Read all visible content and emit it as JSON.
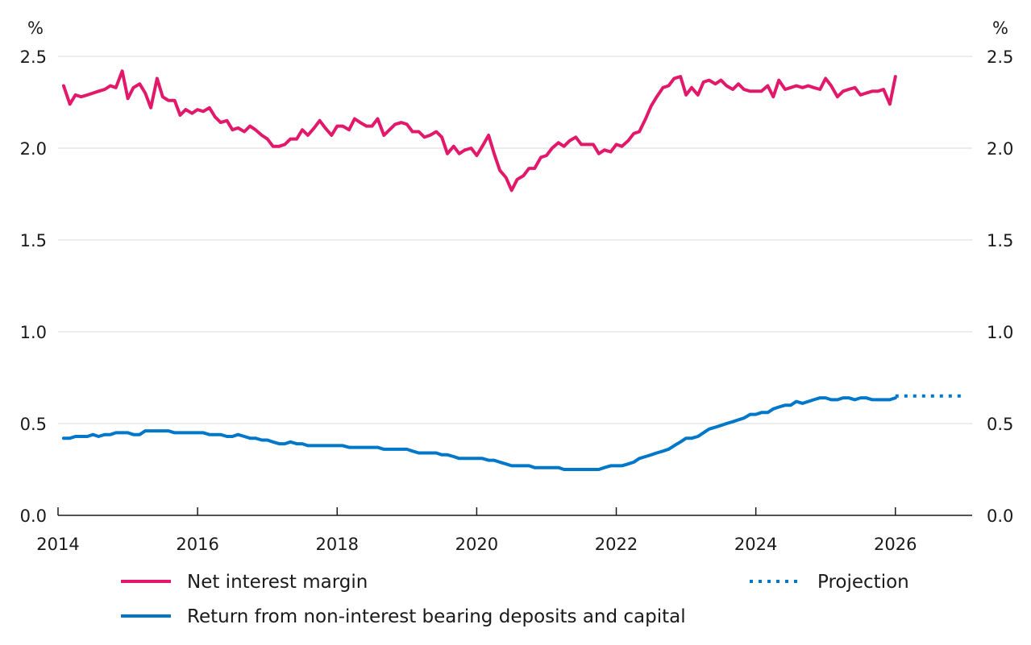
{
  "chart_data": {
    "type": "line",
    "y_unit_left": "%",
    "y_unit_right": "%",
    "ylim": [
      0,
      2.5
    ],
    "y_ticks": [
      0,
      0.5,
      1,
      1.5,
      2,
      2.5
    ],
    "y_tick_labels": [
      "0.0",
      "0.5",
      "1.0",
      "1.5",
      "2.0",
      "2.5"
    ],
    "xlim": [
      2014,
      2027.1
    ],
    "x_ticks": [
      2014,
      2016,
      2018,
      2020,
      2022,
      2024,
      2026
    ],
    "x_tick_labels": [
      "2014",
      "2016",
      "2018",
      "2020",
      "2022",
      "2024",
      "2026"
    ],
    "grid": "horizontal",
    "legend_placement": "bottom",
    "series": [
      {
        "name": "Net interest margin",
        "color": "#e2196b",
        "style": "solid",
        "points": [
          [
            2014.08,
            2.34
          ],
          [
            2014.17,
            2.24
          ],
          [
            2014.25,
            2.29
          ],
          [
            2014.33,
            2.28
          ],
          [
            2014.42,
            2.29
          ],
          [
            2014.5,
            2.3
          ],
          [
            2014.58,
            2.31
          ],
          [
            2014.67,
            2.32
          ],
          [
            2014.75,
            2.34
          ],
          [
            2014.83,
            2.33
          ],
          [
            2014.92,
            2.42
          ],
          [
            2015.0,
            2.27
          ],
          [
            2015.08,
            2.33
          ],
          [
            2015.17,
            2.35
          ],
          [
            2015.25,
            2.3
          ],
          [
            2015.33,
            2.22
          ],
          [
            2015.42,
            2.38
          ],
          [
            2015.5,
            2.28
          ],
          [
            2015.58,
            2.26
          ],
          [
            2015.67,
            2.26
          ],
          [
            2015.75,
            2.18
          ],
          [
            2015.83,
            2.21
          ],
          [
            2015.92,
            2.19
          ],
          [
            2016.0,
            2.21
          ],
          [
            2016.08,
            2.2
          ],
          [
            2016.17,
            2.22
          ],
          [
            2016.25,
            2.17
          ],
          [
            2016.33,
            2.14
          ],
          [
            2016.42,
            2.15
          ],
          [
            2016.5,
            2.1
          ],
          [
            2016.58,
            2.11
          ],
          [
            2016.67,
            2.09
          ],
          [
            2016.75,
            2.12
          ],
          [
            2016.83,
            2.1
          ],
          [
            2016.92,
            2.07
          ],
          [
            2017.0,
            2.05
          ],
          [
            2017.08,
            2.01
          ],
          [
            2017.17,
            2.01
          ],
          [
            2017.25,
            2.02
          ],
          [
            2017.33,
            2.05
          ],
          [
            2017.42,
            2.05
          ],
          [
            2017.5,
            2.1
          ],
          [
            2017.58,
            2.07
          ],
          [
            2017.67,
            2.11
          ],
          [
            2017.75,
            2.15
          ],
          [
            2017.83,
            2.11
          ],
          [
            2017.92,
            2.07
          ],
          [
            2018.0,
            2.12
          ],
          [
            2018.08,
            2.12
          ],
          [
            2018.17,
            2.1
          ],
          [
            2018.25,
            2.16
          ],
          [
            2018.33,
            2.14
          ],
          [
            2018.42,
            2.12
          ],
          [
            2018.5,
            2.12
          ],
          [
            2018.58,
            2.16
          ],
          [
            2018.67,
            2.07
          ],
          [
            2018.75,
            2.1
          ],
          [
            2018.83,
            2.13
          ],
          [
            2018.92,
            2.14
          ],
          [
            2019.0,
            2.13
          ],
          [
            2019.08,
            2.09
          ],
          [
            2019.17,
            2.09
          ],
          [
            2019.25,
            2.06
          ],
          [
            2019.33,
            2.07
          ],
          [
            2019.42,
            2.09
          ],
          [
            2019.5,
            2.06
          ],
          [
            2019.58,
            1.97
          ],
          [
            2019.67,
            2.01
          ],
          [
            2019.75,
            1.97
          ],
          [
            2019.83,
            1.99
          ],
          [
            2019.92,
            2.0
          ],
          [
            2020.0,
            1.96
          ],
          [
            2020.08,
            2.01
          ],
          [
            2020.17,
            2.07
          ],
          [
            2020.25,
            1.97
          ],
          [
            2020.33,
            1.88
          ],
          [
            2020.42,
            1.84
          ],
          [
            2020.5,
            1.77
          ],
          [
            2020.58,
            1.83
          ],
          [
            2020.67,
            1.85
          ],
          [
            2020.75,
            1.89
          ],
          [
            2020.83,
            1.89
          ],
          [
            2020.92,
            1.95
          ],
          [
            2021.0,
            1.96
          ],
          [
            2021.08,
            2.0
          ],
          [
            2021.17,
            2.03
          ],
          [
            2021.25,
            2.01
          ],
          [
            2021.33,
            2.04
          ],
          [
            2021.42,
            2.06
          ],
          [
            2021.5,
            2.02
          ],
          [
            2021.58,
            2.02
          ],
          [
            2021.67,
            2.02
          ],
          [
            2021.75,
            1.97
          ],
          [
            2021.83,
            1.99
          ],
          [
            2021.92,
            1.98
          ],
          [
            2022.0,
            2.02
          ],
          [
            2022.08,
            2.01
          ],
          [
            2022.17,
            2.04
          ],
          [
            2022.25,
            2.08
          ],
          [
            2022.33,
            2.09
          ],
          [
            2022.42,
            2.16
          ],
          [
            2022.5,
            2.23
          ],
          [
            2022.58,
            2.28
          ],
          [
            2022.67,
            2.33
          ],
          [
            2022.75,
            2.34
          ],
          [
            2022.83,
            2.38
          ],
          [
            2022.92,
            2.39
          ],
          [
            2023.0,
            2.29
          ],
          [
            2023.08,
            2.33
          ],
          [
            2023.17,
            2.29
          ],
          [
            2023.25,
            2.36
          ],
          [
            2023.33,
            2.37
          ],
          [
            2023.42,
            2.35
          ],
          [
            2023.5,
            2.37
          ],
          [
            2023.58,
            2.34
          ],
          [
            2023.67,
            2.32
          ],
          [
            2023.75,
            2.35
          ],
          [
            2023.83,
            2.32
          ],
          [
            2023.92,
            2.31
          ],
          [
            2024.0,
            2.31
          ],
          [
            2024.08,
            2.31
          ],
          [
            2024.17,
            2.34
          ],
          [
            2024.25,
            2.28
          ],
          [
            2024.33,
            2.37
          ],
          [
            2024.42,
            2.32
          ],
          [
            2024.5,
            2.33
          ],
          [
            2024.58,
            2.34
          ],
          [
            2024.67,
            2.33
          ],
          [
            2024.75,
            2.34
          ],
          [
            2024.83,
            2.33
          ],
          [
            2024.92,
            2.32
          ],
          [
            2025.0,
            2.38
          ],
          [
            2025.08,
            2.34
          ],
          [
            2025.17,
            2.28
          ],
          [
            2025.25,
            2.31
          ],
          [
            2025.33,
            2.32
          ],
          [
            2025.42,
            2.33
          ],
          [
            2025.5,
            2.29
          ],
          [
            2025.58,
            2.3
          ],
          [
            2025.67,
            2.31
          ],
          [
            2025.75,
            2.31
          ],
          [
            2025.83,
            2.32
          ],
          [
            2025.92,
            2.24
          ],
          [
            2026.0,
            2.39
          ]
        ]
      },
      {
        "name": "Return from non-interest bearing deposits and capital",
        "color": "#0077c8",
        "style": "solid",
        "points": [
          [
            2014.08,
            0.42
          ],
          [
            2014.17,
            0.42
          ],
          [
            2014.25,
            0.43
          ],
          [
            2014.33,
            0.43
          ],
          [
            2014.42,
            0.43
          ],
          [
            2014.5,
            0.44
          ],
          [
            2014.58,
            0.43
          ],
          [
            2014.67,
            0.44
          ],
          [
            2014.75,
            0.44
          ],
          [
            2014.83,
            0.45
          ],
          [
            2014.92,
            0.45
          ],
          [
            2015.0,
            0.45
          ],
          [
            2015.08,
            0.44
          ],
          [
            2015.17,
            0.44
          ],
          [
            2015.25,
            0.46
          ],
          [
            2015.33,
            0.46
          ],
          [
            2015.42,
            0.46
          ],
          [
            2015.5,
            0.46
          ],
          [
            2015.58,
            0.46
          ],
          [
            2015.67,
            0.45
          ],
          [
            2015.75,
            0.45
          ],
          [
            2015.83,
            0.45
          ],
          [
            2015.92,
            0.45
          ],
          [
            2016.0,
            0.45
          ],
          [
            2016.08,
            0.45
          ],
          [
            2016.17,
            0.44
          ],
          [
            2016.25,
            0.44
          ],
          [
            2016.33,
            0.44
          ],
          [
            2016.42,
            0.43
          ],
          [
            2016.5,
            0.43
          ],
          [
            2016.58,
            0.44
          ],
          [
            2016.67,
            0.43
          ],
          [
            2016.75,
            0.42
          ],
          [
            2016.83,
            0.42
          ],
          [
            2016.92,
            0.41
          ],
          [
            2017.0,
            0.41
          ],
          [
            2017.08,
            0.4
          ],
          [
            2017.17,
            0.39
          ],
          [
            2017.25,
            0.39
          ],
          [
            2017.33,
            0.4
          ],
          [
            2017.42,
            0.39
          ],
          [
            2017.5,
            0.39
          ],
          [
            2017.58,
            0.38
          ],
          [
            2017.67,
            0.38
          ],
          [
            2017.75,
            0.38
          ],
          [
            2017.83,
            0.38
          ],
          [
            2017.92,
            0.38
          ],
          [
            2018.0,
            0.38
          ],
          [
            2018.08,
            0.38
          ],
          [
            2018.17,
            0.37
          ],
          [
            2018.25,
            0.37
          ],
          [
            2018.33,
            0.37
          ],
          [
            2018.42,
            0.37
          ],
          [
            2018.5,
            0.37
          ],
          [
            2018.58,
            0.37
          ],
          [
            2018.67,
            0.36
          ],
          [
            2018.75,
            0.36
          ],
          [
            2018.83,
            0.36
          ],
          [
            2018.92,
            0.36
          ],
          [
            2019.0,
            0.36
          ],
          [
            2019.08,
            0.35
          ],
          [
            2019.17,
            0.34
          ],
          [
            2019.25,
            0.34
          ],
          [
            2019.33,
            0.34
          ],
          [
            2019.42,
            0.34
          ],
          [
            2019.5,
            0.33
          ],
          [
            2019.58,
            0.33
          ],
          [
            2019.67,
            0.32
          ],
          [
            2019.75,
            0.31
          ],
          [
            2019.83,
            0.31
          ],
          [
            2019.92,
            0.31
          ],
          [
            2020.0,
            0.31
          ],
          [
            2020.08,
            0.31
          ],
          [
            2020.17,
            0.3
          ],
          [
            2020.25,
            0.3
          ],
          [
            2020.33,
            0.29
          ],
          [
            2020.42,
            0.28
          ],
          [
            2020.5,
            0.27
          ],
          [
            2020.58,
            0.27
          ],
          [
            2020.67,
            0.27
          ],
          [
            2020.75,
            0.27
          ],
          [
            2020.83,
            0.26
          ],
          [
            2020.92,
            0.26
          ],
          [
            2021.0,
            0.26
          ],
          [
            2021.08,
            0.26
          ],
          [
            2021.17,
            0.26
          ],
          [
            2021.25,
            0.25
          ],
          [
            2021.33,
            0.25
          ],
          [
            2021.42,
            0.25
          ],
          [
            2021.5,
            0.25
          ],
          [
            2021.58,
            0.25
          ],
          [
            2021.67,
            0.25
          ],
          [
            2021.75,
            0.25
          ],
          [
            2021.83,
            0.26
          ],
          [
            2021.92,
            0.27
          ],
          [
            2022.0,
            0.27
          ],
          [
            2022.08,
            0.27
          ],
          [
            2022.17,
            0.28
          ],
          [
            2022.25,
            0.29
          ],
          [
            2022.33,
            0.31
          ],
          [
            2022.42,
            0.32
          ],
          [
            2022.5,
            0.33
          ],
          [
            2022.58,
            0.34
          ],
          [
            2022.67,
            0.35
          ],
          [
            2022.75,
            0.36
          ],
          [
            2022.83,
            0.38
          ],
          [
            2022.92,
            0.4
          ],
          [
            2023.0,
            0.42
          ],
          [
            2023.08,
            0.42
          ],
          [
            2023.17,
            0.43
          ],
          [
            2023.25,
            0.45
          ],
          [
            2023.33,
            0.47
          ],
          [
            2023.42,
            0.48
          ],
          [
            2023.5,
            0.49
          ],
          [
            2023.58,
            0.5
          ],
          [
            2023.67,
            0.51
          ],
          [
            2023.75,
            0.52
          ],
          [
            2023.83,
            0.53
          ],
          [
            2023.92,
            0.55
          ],
          [
            2024.0,
            0.55
          ],
          [
            2024.08,
            0.56
          ],
          [
            2024.17,
            0.56
          ],
          [
            2024.25,
            0.58
          ],
          [
            2024.33,
            0.59
          ],
          [
            2024.42,
            0.6
          ],
          [
            2024.5,
            0.6
          ],
          [
            2024.58,
            0.62
          ],
          [
            2024.67,
            0.61
          ],
          [
            2024.75,
            0.62
          ],
          [
            2024.83,
            0.63
          ],
          [
            2024.92,
            0.64
          ],
          [
            2025.0,
            0.64
          ],
          [
            2025.08,
            0.63
          ],
          [
            2025.17,
            0.63
          ],
          [
            2025.25,
            0.64
          ],
          [
            2025.33,
            0.64
          ],
          [
            2025.42,
            0.63
          ],
          [
            2025.5,
            0.64
          ],
          [
            2025.58,
            0.64
          ],
          [
            2025.67,
            0.63
          ],
          [
            2025.75,
            0.63
          ],
          [
            2025.83,
            0.63
          ],
          [
            2025.92,
            0.63
          ],
          [
            2026.0,
            0.64
          ]
        ]
      }
    ],
    "projection": {
      "name": "Projection",
      "color": "#0077c8",
      "style": "dotted",
      "points": [
        [
          2026.0,
          0.65
        ],
        [
          2026.5,
          0.65
        ],
        [
          2027.0,
          0.65
        ]
      ]
    }
  }
}
